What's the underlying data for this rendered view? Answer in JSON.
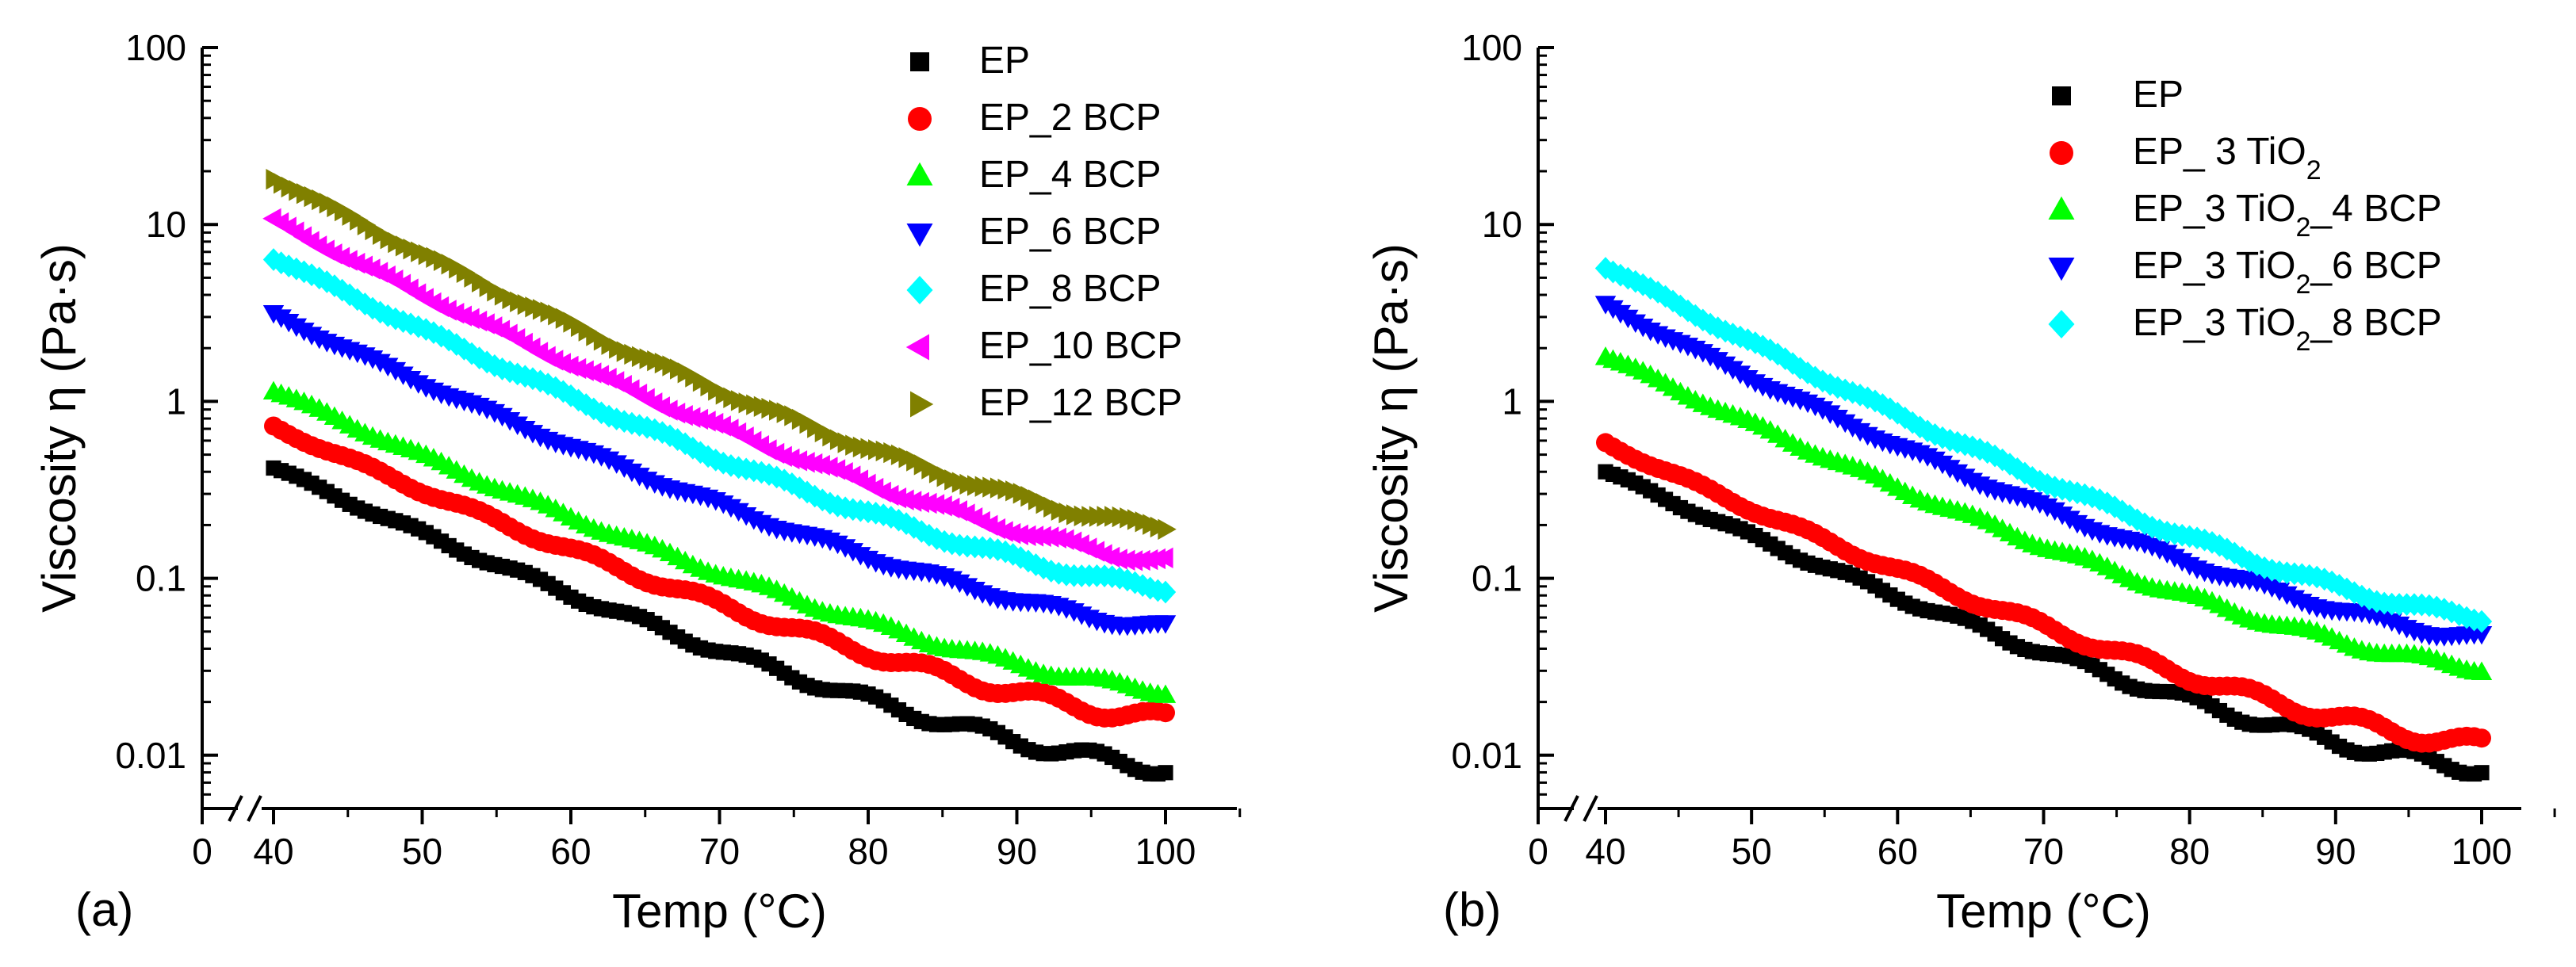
{
  "colors": {
    "black": "#000000",
    "red": "#ff0000",
    "green": "#00ff00",
    "blue": "#0000ff",
    "cyan": "#00ffff",
    "magenta": "#ff00ff",
    "olive": "#808000"
  },
  "chart_data": [
    {
      "type": "scatter",
      "panel_label": "(a)",
      "xlabel": "Temp (°C)",
      "ylabel": "Viscosity η (Pa·s)",
      "xscale": "linear with axis break between 0 and 40",
      "yscale": "log",
      "xlim": [
        0,
        105
      ],
      "ylim": [
        0.005,
        100
      ],
      "x_ticks": [
        0,
        40,
        50,
        60,
        70,
        80,
        90,
        100
      ],
      "x_tick_labels": [
        "0",
        "40",
        "50",
        "60",
        "70",
        "80",
        "90",
        "100"
      ],
      "y_ticks": [
        0.01,
        0.1,
        1,
        10,
        100
      ],
      "y_tick_labels": [
        "0.01",
        "0.1",
        "1",
        "10",
        "100"
      ],
      "legend_position": "top-right",
      "x_range": [
        40,
        100
      ],
      "series": [
        {
          "name": "EP",
          "marker": "square",
          "color": "#000000",
          "y_start": 0.42,
          "y_end": 0.0085
        },
        {
          "name": "EP_2 BCP",
          "marker": "circle",
          "color": "#ff0000",
          "y_start": 0.72,
          "y_end": 0.016
        },
        {
          "name": "EP_4 BCP",
          "marker": "triangle-up",
          "color": "#00ff00",
          "y_start": 1.15,
          "y_end": 0.023
        },
        {
          "name": "EP_6 BCP",
          "marker": "triangle-down",
          "color": "#0000ff",
          "y_start": 3.1,
          "y_end": 0.053
        },
        {
          "name": "EP_8 BCP",
          "marker": "diamond",
          "color": "#00ffff",
          "y_start": 6.5,
          "y_end": 0.088
        },
        {
          "name": "EP_10 BCP",
          "marker": "triangle-left",
          "color": "#ff00ff",
          "y_start": 10.5,
          "y_end": 0.125
        },
        {
          "name": "EP_12 BCP",
          "marker": "triangle-right",
          "color": "#808000",
          "y_start": 18.5,
          "y_end": 0.195
        }
      ]
    },
    {
      "type": "scatter",
      "panel_label": "(b)",
      "xlabel": "Temp (°C)",
      "ylabel": "Viscosity η (Pa·s)",
      "xscale": "linear with axis break between 0 and 40",
      "yscale": "log",
      "xlim": [
        0,
        105
      ],
      "ylim": [
        0.005,
        100
      ],
      "x_ticks": [
        0,
        40,
        50,
        60,
        70,
        80,
        90,
        100
      ],
      "x_tick_labels": [
        "0",
        "40",
        "50",
        "60",
        "70",
        "80",
        "90",
        "100"
      ],
      "y_ticks": [
        0.01,
        0.1,
        1,
        10,
        100
      ],
      "y_tick_labels": [
        "0.01",
        "0.1",
        "1",
        "10",
        "100"
      ],
      "legend_position": "top-right",
      "x_range": [
        40,
        100
      ],
      "series": [
        {
          "name": "EP",
          "marker": "square",
          "color": "#000000",
          "y_start": 0.4,
          "y_end": 0.0085
        },
        {
          "name": "EP_ 3 TiO₂",
          "marker": "circle",
          "color": "#ff0000",
          "y_start": 0.58,
          "y_end": 0.0115
        },
        {
          "name": "EP_3 TiO₂_4 BCP",
          "marker": "triangle-up",
          "color": "#00ff00",
          "y_start": 1.8,
          "y_end": 0.031
        },
        {
          "name": "EP_3 TiO₂_6 BCP",
          "marker": "triangle-down",
          "color": "#0000ff",
          "y_start": 3.5,
          "y_end": 0.046
        },
        {
          "name": "EP_3 TiO₂_8 BCP",
          "marker": "diamond",
          "color": "#00ffff",
          "y_start": 5.8,
          "y_end": 0.06
        }
      ]
    }
  ]
}
